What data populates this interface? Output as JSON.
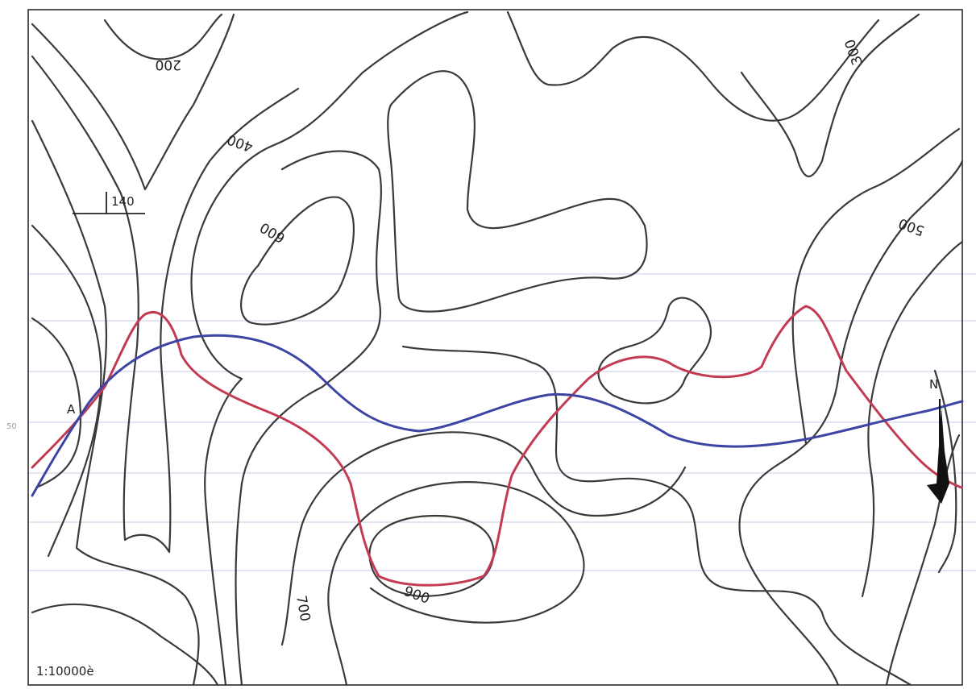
{
  "map": {
    "scale_label": "1:10000è",
    "margin_value": "50",
    "north_label": "N",
    "point_label": "A",
    "spot_label": "140",
    "contour_labels": [
      "200",
      "400",
      "600",
      "300",
      "500",
      "700",
      "900"
    ],
    "colors": {
      "contour": "#3a3a3a",
      "profile_red": "#c33b52",
      "profile_blue": "#3d44a3",
      "ruled_lines": "#c5cbe6"
    }
  }
}
